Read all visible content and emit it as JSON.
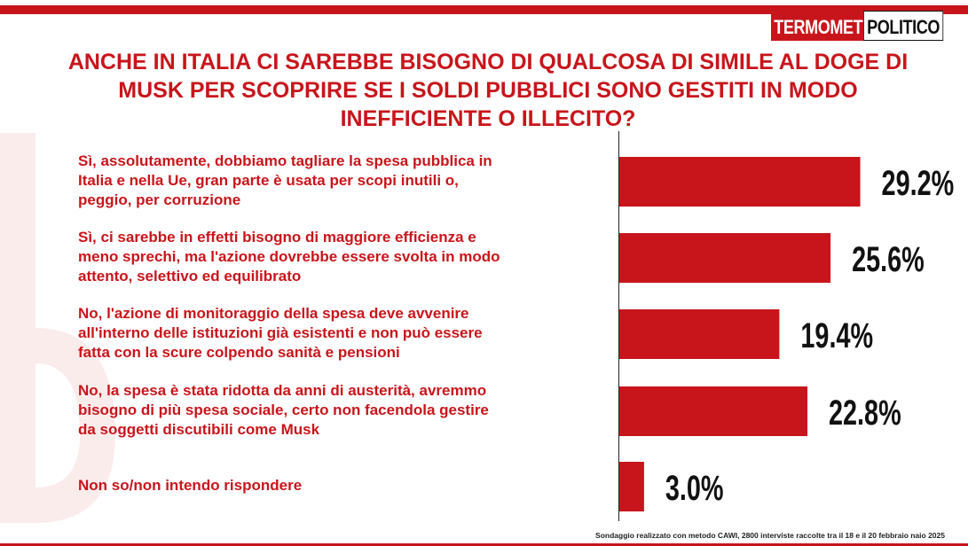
{
  "brand": {
    "left": "TERMOMETRO",
    "right": "POLITICO"
  },
  "title": "ANCHE IN ITALIA CI SAREBBE BISOGNO DI QUALCOSA DI SIMILE AL DOGE DI MUSK PER SCOPRIRE SE I SOLDI PUBBLICI SONO GESTITI IN MODO INEFFICIENTE O ILLECITO?",
  "footer": "Sondaggio realizzato con metodo CAWI, 2800 interviste raccolte tra il 18 e il 20 febbraio naio 2025",
  "colors": {
    "accent": "#c8151b"
  },
  "chart_data": {
    "type": "bar",
    "orientation": "horizontal",
    "title": "ANCHE IN ITALIA CI SAREBBE BISOGNO DI QUALCOSA DI SIMILE AL DOGE DI MUSK PER SCOPRIRE SE I SOLDI PUBBLICI SONO GESTITI IN MODO INEFFICIENTE O ILLECITO?",
    "categories": [
      "Sì, assolutamente, dobbiamo tagliare la spesa pubblica in Italia e nella Ue, gran parte è usata per scopi inutili o, peggio, per corruzione",
      "Sì, ci sarebbe in effetti bisogno di maggiore efficienza e meno sprechi, ma l'azione dovrebbe essere svolta in modo attento, selettivo ed equilibrato",
      "No, l'azione di monitoraggio della spesa deve avvenire all'interno delle istituzioni già  esistenti e non può essere fatta con la scure colpendo sanità  e pensioni",
      "No, la spesa è stata ridotta da anni di austerità, avremmo bisogno di più spesa sociale, certo non facendola gestire da soggetti discutibili come Musk",
      "Non so/non intendo rispondere"
    ],
    "category_lines": [
      [
        "Sì, assolutamente, dobbiamo tagliare la spesa pubblica in",
        "Italia e nella Ue, gran parte è usata per scopi inutili o,",
        "peggio, per corruzione"
      ],
      [
        "Sì, ci sarebbe in effetti bisogno di maggiore efficienza e",
        "meno sprechi, ma l'azione dovrebbe essere svolta in modo",
        "attento, selettivo ed equilibrato"
      ],
      [
        "No, l'azione di monitoraggio della spesa deve avvenire",
        "all'interno delle istituzioni già  esistenti e non può essere",
        "fatta con la scure colpendo sanità  e pensioni"
      ],
      [
        "No, la spesa è stata ridotta da anni di austerità, avremmo",
        "bisogno di più spesa sociale, certo non facendola gestire",
        "da soggetti discutibili come Musk"
      ],
      [
        "Non so/non intendo rispondere"
      ]
    ],
    "values": [
      29.2,
      25.6,
      19.4,
      22.8,
      3.0
    ],
    "value_labels": [
      "29.2%",
      "25.6%",
      "19.4%",
      "22.8%",
      "3.0%"
    ],
    "unit": "%",
    "xlim": [
      0,
      40
    ],
    "grid": false,
    "bar_color": "#c8151b"
  }
}
